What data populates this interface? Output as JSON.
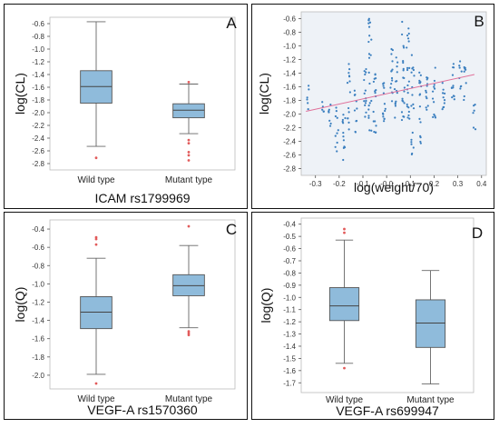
{
  "chart_data": [
    {
      "type": "box",
      "panel_letter": "A",
      "ylabel": "log(CL)",
      "xlabel": "ICAM rs1799969",
      "categories": [
        "Wild type",
        "Mutant type"
      ],
      "yticks": [
        "-0.6",
        "-0.8",
        "-1.0",
        "-1.2",
        "-1.4",
        "-1.6",
        "-1.8",
        "-2.0",
        "-2.2",
        "-2.4",
        "-2.6",
        "-2.8"
      ],
      "ylim": [
        -2.9,
        -0.5
      ],
      "boxes": [
        {
          "whisker_high": -0.57,
          "q3": -1.34,
          "median": -1.59,
          "q1": -1.85,
          "whisker_low": -2.53,
          "outliers": [
            -2.71
          ]
        },
        {
          "whisker_high": -1.55,
          "q3": -1.86,
          "median": -1.96,
          "q1": -2.08,
          "whisker_low": -2.33,
          "outliers": [
            -1.52,
            -2.43,
            -2.48,
            -2.62,
            -2.67,
            -2.75
          ]
        }
      ],
      "colors": {
        "box_fill": "#8fbbdb",
        "outlier": "#e25a5a"
      }
    },
    {
      "type": "scatter",
      "panel_letter": "B",
      "ylabel": "log(CL)",
      "xlabel": "log(weight/70)",
      "xticks": [
        "-0.3",
        "-0.2",
        "-0.1",
        "-0.0",
        "0.1",
        "0.2",
        "0.3",
        "0.4"
      ],
      "yticks": [
        "-0.6",
        "-0.8",
        "-1.0",
        "-1.2",
        "-1.4",
        "-1.6",
        "-1.8",
        "-2.0",
        "-2.2",
        "-2.4",
        "-2.6",
        "-2.8"
      ],
      "xlim": [
        -0.36,
        0.42
      ],
      "ylim": [
        -2.9,
        -0.5
      ],
      "fit_line": {
        "x": [
          -0.34,
          0.37
        ],
        "y": [
          -1.96,
          -1.42
        ]
      },
      "clusters": [
        {
          "x": -0.33,
          "ymin": -2.06,
          "ymax": -1.52,
          "n": 6
        },
        {
          "x": -0.27,
          "ymin": -2.12,
          "ymax": -1.72,
          "n": 5
        },
        {
          "x": -0.24,
          "ymin": -2.3,
          "ymax": -1.76,
          "n": 7
        },
        {
          "x": -0.21,
          "ymin": -2.6,
          "ymax": -1.82,
          "n": 10
        },
        {
          "x": -0.18,
          "ymin": -2.76,
          "ymax": -1.93,
          "n": 12
        },
        {
          "x": -0.16,
          "ymin": -2.46,
          "ymax": -1.22,
          "n": 14
        },
        {
          "x": -0.13,
          "ymin": -2.3,
          "ymax": -1.64,
          "n": 10
        },
        {
          "x": -0.09,
          "ymin": -2.1,
          "ymax": -1.3,
          "n": 14
        },
        {
          "x": -0.07,
          "ymin": -2.26,
          "ymax": -0.56,
          "n": 22
        },
        {
          "x": -0.05,
          "ymin": -2.34,
          "ymax": -1.4,
          "n": 16
        },
        {
          "x": -0.01,
          "ymin": -2.2,
          "ymax": -1.5,
          "n": 14
        },
        {
          "x": 0.02,
          "ymin": -1.86,
          "ymax": -1.02,
          "n": 14
        },
        {
          "x": 0.04,
          "ymin": -2.06,
          "ymax": -1.14,
          "n": 14
        },
        {
          "x": 0.07,
          "ymin": -2.1,
          "ymax": -0.62,
          "n": 20
        },
        {
          "x": 0.09,
          "ymin": -2.3,
          "ymax": -0.74,
          "n": 20
        },
        {
          "x": 0.11,
          "ymin": -2.6,
          "ymax": -1.02,
          "n": 18
        },
        {
          "x": 0.14,
          "ymin": -2.46,
          "ymax": -1.36,
          "n": 16
        },
        {
          "x": 0.17,
          "ymin": -1.96,
          "ymax": -1.44,
          "n": 12
        },
        {
          "x": 0.2,
          "ymin": -2.1,
          "ymax": -1.28,
          "n": 12
        },
        {
          "x": 0.24,
          "ymin": -1.94,
          "ymax": -1.38,
          "n": 10
        },
        {
          "x": 0.28,
          "ymin": -1.82,
          "ymax": -1.1,
          "n": 12
        },
        {
          "x": 0.31,
          "ymin": -1.64,
          "ymax": -1.22,
          "n": 8
        },
        {
          "x": 0.33,
          "ymin": -1.8,
          "ymax": -1.3,
          "n": 8
        },
        {
          "x": 0.37,
          "ymin": -2.28,
          "ymax": -1.86,
          "n": 6
        }
      ],
      "colors": {
        "point": "#3b7fbf",
        "fit_line": "#e0709a"
      }
    },
    {
      "type": "box",
      "panel_letter": "C",
      "ylabel": "log(Q)",
      "xlabel": "VEGF-A rs1570360",
      "categories": [
        "Wild type",
        "Mutant type"
      ],
      "yticks": [
        "-0.4",
        "-0.6",
        "-0.8",
        "-1.0",
        "-1.2",
        "-1.4",
        "-1.6",
        "-1.8",
        "-2.0"
      ],
      "ylim": [
        -2.15,
        -0.3
      ],
      "boxes": [
        {
          "whisker_high": -0.72,
          "q3": -1.14,
          "median": -1.31,
          "q1": -1.49,
          "whisker_low": -1.99,
          "outliers": [
            -0.49,
            -0.51,
            -0.57,
            -2.09
          ]
        },
        {
          "whisker_high": -0.58,
          "q3": -0.9,
          "median": -1.02,
          "q1": -1.13,
          "whisker_low": -1.48,
          "outliers": [
            -0.37,
            -1.52,
            -1.54,
            -1.56
          ]
        }
      ],
      "colors": {
        "box_fill": "#8fbbdb",
        "outlier": "#e25a5a"
      }
    },
    {
      "type": "box",
      "panel_letter": "D",
      "ylabel": "log(Q)",
      "xlabel": "VEGF-A rs699947",
      "categories": [
        "Wild type",
        "Mutant type"
      ],
      "yticks": [
        "-0.4",
        "-0.5",
        "-0.6",
        "-0.7",
        "-0.8",
        "-0.9",
        "-1.0",
        "-1.1",
        "-1.2",
        "-1.3",
        "-1.4",
        "-1.5",
        "-1.6",
        "-1.7"
      ],
      "ylim": [
        -1.78,
        -0.35
      ],
      "boxes": [
        {
          "whisker_high": -0.53,
          "q3": -0.92,
          "median": -1.07,
          "q1": -1.19,
          "whisker_low": -1.54,
          "outliers": [
            -0.44,
            -0.47,
            -1.58
          ]
        },
        {
          "whisker_high": -0.78,
          "q3": -1.02,
          "median": -1.21,
          "q1": -1.41,
          "whisker_low": -1.71,
          "outliers": []
        }
      ],
      "colors": {
        "box_fill": "#8fbbdb",
        "outlier": "#e25a5a"
      }
    }
  ]
}
